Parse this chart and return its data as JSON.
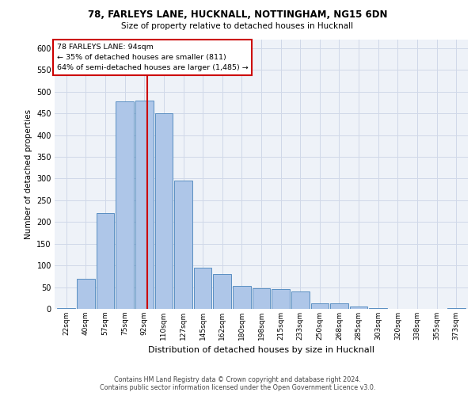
{
  "title1": "78, FARLEYS LANE, HUCKNALL, NOTTINGHAM, NG15 6DN",
  "title2": "Size of property relative to detached houses in Hucknall",
  "xlabel": "Distribution of detached houses by size in Hucknall",
  "ylabel": "Number of detached properties",
  "footer1": "Contains HM Land Registry data © Crown copyright and database right 2024.",
  "footer2": "Contains public sector information licensed under the Open Government Licence v3.0.",
  "categories": [
    "22sqm",
    "40sqm",
    "57sqm",
    "75sqm",
    "92sqm",
    "110sqm",
    "127sqm",
    "145sqm",
    "162sqm",
    "180sqm",
    "198sqm",
    "215sqm",
    "233sqm",
    "250sqm",
    "268sqm",
    "285sqm",
    "303sqm",
    "320sqm",
    "338sqm",
    "355sqm",
    "373sqm"
  ],
  "values": [
    2,
    70,
    220,
    478,
    480,
    450,
    295,
    95,
    80,
    53,
    48,
    45,
    40,
    12,
    12,
    5,
    2,
    0,
    0,
    0,
    2
  ],
  "bar_color": "#aec6e8",
  "bar_edge_color": "#5a8fc2",
  "grid_color": "#d0d8e8",
  "bg_color": "#eef2f8",
  "annotation_text_line1": "78 FARLEYS LANE: 94sqm",
  "annotation_text_line2": "← 35% of detached houses are smaller (811)",
  "annotation_text_line3": "64% of semi-detached houses are larger (1,485) →",
  "annotation_box_color": "#ffffff",
  "annotation_box_edge": "#cc0000",
  "property_line_color": "#cc0000",
  "property_line_index": 4.15,
  "ylim": [
    0,
    620
  ],
  "yticks": [
    0,
    50,
    100,
    150,
    200,
    250,
    300,
    350,
    400,
    450,
    500,
    550,
    600
  ]
}
